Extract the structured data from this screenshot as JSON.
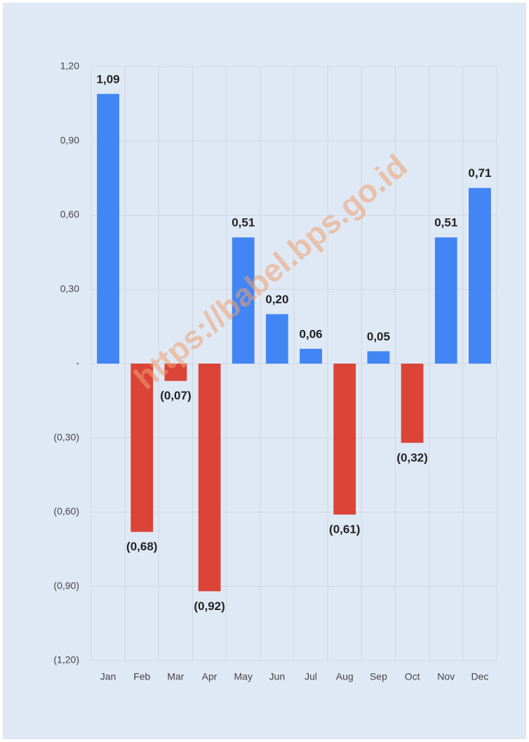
{
  "chart_data": {
    "type": "bar",
    "watermark": "https://babel.bps.go.id",
    "categories": [
      "Jan",
      "Feb",
      "Mar",
      "Apr",
      "May",
      "Jun",
      "Jul",
      "Aug",
      "Sep",
      "Oct",
      "Nov",
      "Dec"
    ],
    "values": [
      1.09,
      -0.68,
      -0.07,
      -0.92,
      0.51,
      0.2,
      0.06,
      -0.61,
      0.05,
      -0.32,
      0.51,
      0.71
    ],
    "value_labels": [
      "1,09",
      "(0,68)",
      "(0,07)",
      "(0,92)",
      "0,51",
      "0,20",
      "0,06",
      "(0,61)",
      "0,05",
      "(0,32)",
      "0,51",
      "0,71"
    ],
    "color_positive": "#4285f4",
    "color_negative": "#db4437",
    "ylim": [
      -1.2,
      1.2
    ],
    "yticks": [
      {
        "value": -1.2,
        "label": "(1,20)"
      },
      {
        "value": -0.9,
        "label": "(0,90)"
      },
      {
        "value": -0.6,
        "label": "(0,60)"
      },
      {
        "value": -0.3,
        "label": "(0,30)"
      },
      {
        "value": 0,
        "label": "-"
      },
      {
        "value": 0.3,
        "label": "0,30"
      },
      {
        "value": 0.6,
        "label": "0,60"
      },
      {
        "value": 0.9,
        "label": "0,90"
      },
      {
        "value": 1.2,
        "label": "1,20"
      }
    ],
    "grid": true
  }
}
